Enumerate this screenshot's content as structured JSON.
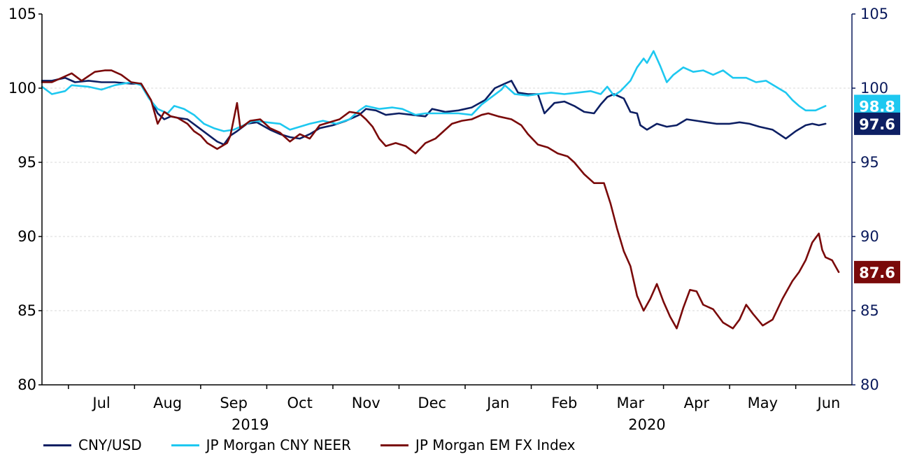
{
  "chart_data": {
    "type": "line",
    "title": "",
    "xlabel": "",
    "ylabel": "",
    "ylim": [
      80,
      105
    ],
    "y_ticks": [
      80,
      85,
      90,
      95,
      100,
      105
    ],
    "y2lim": [
      80,
      105
    ],
    "y2_ticks": [
      80,
      85,
      90,
      95,
      100,
      105
    ],
    "grid": "horizontal dashed",
    "legend_position": "bottom",
    "x_month_labels": [
      "Jul",
      "Aug",
      "Sep",
      "Oct",
      "Nov",
      "Dec",
      "Jan",
      "Feb",
      "Mar",
      "Apr",
      "May",
      "Jun"
    ],
    "x_year_labels": [
      {
        "label": "2019",
        "month_index": 2.25
      },
      {
        "label": "2020",
        "month_index": 8.25
      }
    ],
    "x_start_month_index": -0.9,
    "x_end_month_index": 10.95,
    "end_labels": [
      {
        "series": 1,
        "text": "98.8",
        "value": 98.8
      },
      {
        "series": 0,
        "text": "97.6",
        "value": 97.6
      },
      {
        "series": 2,
        "text": "87.6",
        "value": 87.6
      }
    ],
    "series": [
      {
        "name": "CNY/USD",
        "color": "#0d1f63",
        "points": [
          [
            -0.9,
            100.5
          ],
          [
            -0.75,
            100.5
          ],
          [
            -0.55,
            100.7
          ],
          [
            -0.4,
            100.4
          ],
          [
            -0.2,
            100.5
          ],
          [
            0,
            100.4
          ],
          [
            0.2,
            100.4
          ],
          [
            0.45,
            100.3
          ],
          [
            0.6,
            100.3
          ],
          [
            0.72,
            99.4
          ],
          [
            0.85,
            98.3
          ],
          [
            0.95,
            97.9
          ],
          [
            1.05,
            98.1
          ],
          [
            1.15,
            98.0
          ],
          [
            1.3,
            97.9
          ],
          [
            1.45,
            97.4
          ],
          [
            1.6,
            96.9
          ],
          [
            1.75,
            96.4
          ],
          [
            1.85,
            96.2
          ],
          [
            1.95,
            96.8
          ],
          [
            2.05,
            97.1
          ],
          [
            2.2,
            97.6
          ],
          [
            2.35,
            97.7
          ],
          [
            2.55,
            97.2
          ],
          [
            2.7,
            96.9
          ],
          [
            2.85,
            96.7
          ],
          [
            3.0,
            96.6
          ],
          [
            3.15,
            96.9
          ],
          [
            3.3,
            97.3
          ],
          [
            3.5,
            97.5
          ],
          [
            3.7,
            97.8
          ],
          [
            3.9,
            98.2
          ],
          [
            4.0,
            98.6
          ],
          [
            4.15,
            98.5
          ],
          [
            4.3,
            98.2
          ],
          [
            4.5,
            98.3
          ],
          [
            4.7,
            98.2
          ],
          [
            4.9,
            98.1
          ],
          [
            5.0,
            98.6
          ],
          [
            5.2,
            98.4
          ],
          [
            5.4,
            98.5
          ],
          [
            5.6,
            98.7
          ],
          [
            5.8,
            99.2
          ],
          [
            5.95,
            100.0
          ],
          [
            6.1,
            100.3
          ],
          [
            6.2,
            100.5
          ],
          [
            6.3,
            99.7
          ],
          [
            6.45,
            99.6
          ],
          [
            6.6,
            99.6
          ],
          [
            6.7,
            98.3
          ],
          [
            6.85,
            99.0
          ],
          [
            7.0,
            99.1
          ],
          [
            7.15,
            98.8
          ],
          [
            7.3,
            98.4
          ],
          [
            7.45,
            98.3
          ],
          [
            7.55,
            98.9
          ],
          [
            7.65,
            99.4
          ],
          [
            7.75,
            99.6
          ],
          [
            7.9,
            99.3
          ],
          [
            8.0,
            98.4
          ],
          [
            8.1,
            98.3
          ],
          [
            8.15,
            97.5
          ],
          [
            8.25,
            97.2
          ],
          [
            8.4,
            97.6
          ],
          [
            8.55,
            97.4
          ],
          [
            8.7,
            97.5
          ],
          [
            8.85,
            97.9
          ],
          [
            9.0,
            97.8
          ],
          [
            9.15,
            97.7
          ],
          [
            9.3,
            97.6
          ],
          [
            9.5,
            97.6
          ],
          [
            9.65,
            97.7
          ],
          [
            9.8,
            97.6
          ],
          [
            9.95,
            97.4
          ],
          [
            10.15,
            97.2
          ],
          [
            10.25,
            96.9
          ],
          [
            10.35,
            96.6
          ],
          [
            10.5,
            97.1
          ],
          [
            10.65,
            97.5
          ],
          [
            10.75,
            97.6
          ],
          [
            10.85,
            97.5
          ],
          [
            10.95,
            97.6
          ]
        ]
      },
      {
        "name": "JP Morgan CNY NEER",
        "color": "#1ec8f0",
        "points": [
          [
            -0.9,
            100.1
          ],
          [
            -0.75,
            99.6
          ],
          [
            -0.55,
            99.8
          ],
          [
            -0.45,
            100.2
          ],
          [
            -0.2,
            100.1
          ],
          [
            0,
            99.9
          ],
          [
            0.2,
            100.2
          ],
          [
            0.45,
            100.4
          ],
          [
            0.6,
            100.2
          ],
          [
            0.72,
            99.3
          ],
          [
            0.85,
            98.6
          ],
          [
            1.0,
            98.3
          ],
          [
            1.1,
            98.8
          ],
          [
            1.25,
            98.6
          ],
          [
            1.4,
            98.2
          ],
          [
            1.55,
            97.6
          ],
          [
            1.7,
            97.3
          ],
          [
            1.85,
            97.1
          ],
          [
            2.0,
            97.2
          ],
          [
            2.15,
            97.5
          ],
          [
            2.3,
            97.8
          ],
          [
            2.5,
            97.7
          ],
          [
            2.7,
            97.6
          ],
          [
            2.85,
            97.2
          ],
          [
            3.0,
            97.4
          ],
          [
            3.15,
            97.6
          ],
          [
            3.35,
            97.8
          ],
          [
            3.55,
            97.6
          ],
          [
            3.75,
            97.9
          ],
          [
            3.9,
            98.5
          ],
          [
            4.0,
            98.8
          ],
          [
            4.2,
            98.6
          ],
          [
            4.4,
            98.7
          ],
          [
            4.55,
            98.6
          ],
          [
            4.75,
            98.2
          ],
          [
            4.9,
            98.3
          ],
          [
            5.05,
            98.3
          ],
          [
            5.2,
            98.3
          ],
          [
            5.4,
            98.3
          ],
          [
            5.6,
            98.2
          ],
          [
            5.75,
            98.9
          ],
          [
            5.9,
            99.4
          ],
          [
            6.05,
            99.9
          ],
          [
            6.1,
            100.2
          ],
          [
            6.25,
            99.6
          ],
          [
            6.45,
            99.5
          ],
          [
            6.6,
            99.6
          ],
          [
            6.8,
            99.7
          ],
          [
            7.0,
            99.6
          ],
          [
            7.2,
            99.7
          ],
          [
            7.4,
            99.8
          ],
          [
            7.55,
            99.6
          ],
          [
            7.65,
            100.1
          ],
          [
            7.75,
            99.5
          ],
          [
            7.85,
            99.8
          ],
          [
            8.0,
            100.5
          ],
          [
            8.1,
            101.4
          ],
          [
            8.2,
            102.0
          ],
          [
            8.25,
            101.7
          ],
          [
            8.35,
            102.5
          ],
          [
            8.45,
            101.5
          ],
          [
            8.55,
            100.4
          ],
          [
            8.65,
            100.9
          ],
          [
            8.8,
            101.4
          ],
          [
            8.95,
            101.1
          ],
          [
            9.1,
            101.2
          ],
          [
            9.25,
            100.9
          ],
          [
            9.4,
            101.2
          ],
          [
            9.55,
            100.7
          ],
          [
            9.75,
            100.7
          ],
          [
            9.9,
            100.4
          ],
          [
            10.05,
            100.5
          ],
          [
            10.2,
            100.1
          ],
          [
            10.35,
            99.7
          ],
          [
            10.45,
            99.2
          ],
          [
            10.55,
            98.8
          ],
          [
            10.65,
            98.5
          ],
          [
            10.8,
            98.5
          ],
          [
            10.95,
            98.8
          ]
        ]
      },
      {
        "name": "JP Morgan EM FX Index",
        "color": "#7a0a0a",
        "points": [
          [
            -0.9,
            100.4
          ],
          [
            -0.75,
            100.4
          ],
          [
            -0.55,
            100.8
          ],
          [
            -0.45,
            101.0
          ],
          [
            -0.3,
            100.5
          ],
          [
            -0.2,
            100.8
          ],
          [
            -0.1,
            101.1
          ],
          [
            0.05,
            101.2
          ],
          [
            0.15,
            101.2
          ],
          [
            0.3,
            100.9
          ],
          [
            0.45,
            100.4
          ],
          [
            0.6,
            100.3
          ],
          [
            0.75,
            99.2
          ],
          [
            0.85,
            97.6
          ],
          [
            0.95,
            98.4
          ],
          [
            1.05,
            98.1
          ],
          [
            1.15,
            98.0
          ],
          [
            1.3,
            97.6
          ],
          [
            1.4,
            97.1
          ],
          [
            1.5,
            96.8
          ],
          [
            1.6,
            96.3
          ],
          [
            1.75,
            95.9
          ],
          [
            1.9,
            96.3
          ],
          [
            1.95,
            96.8
          ],
          [
            2.05,
            99.0
          ],
          [
            2.1,
            97.3
          ],
          [
            2.25,
            97.8
          ],
          [
            2.4,
            97.9
          ],
          [
            2.55,
            97.3
          ],
          [
            2.7,
            97.0
          ],
          [
            2.85,
            96.4
          ],
          [
            3.0,
            96.9
          ],
          [
            3.15,
            96.6
          ],
          [
            3.3,
            97.5
          ],
          [
            3.45,
            97.7
          ],
          [
            3.6,
            97.9
          ],
          [
            3.75,
            98.4
          ],
          [
            3.9,
            98.3
          ],
          [
            4.0,
            97.9
          ],
          [
            4.1,
            97.4
          ],
          [
            4.2,
            96.6
          ],
          [
            4.3,
            96.1
          ],
          [
            4.45,
            96.3
          ],
          [
            4.6,
            96.1
          ],
          [
            4.75,
            95.6
          ],
          [
            4.9,
            96.3
          ],
          [
            5.05,
            96.6
          ],
          [
            5.2,
            97.2
          ],
          [
            5.3,
            97.6
          ],
          [
            5.45,
            97.8
          ],
          [
            5.6,
            97.9
          ],
          [
            5.75,
            98.2
          ],
          [
            5.85,
            98.3
          ],
          [
            6.0,
            98.1
          ],
          [
            6.2,
            97.9
          ],
          [
            6.35,
            97.5
          ],
          [
            6.45,
            96.9
          ],
          [
            6.6,
            96.2
          ],
          [
            6.75,
            96.0
          ],
          [
            6.9,
            95.6
          ],
          [
            7.05,
            95.4
          ],
          [
            7.15,
            95.0
          ],
          [
            7.3,
            94.2
          ],
          [
            7.45,
            93.6
          ],
          [
            7.6,
            93.6
          ],
          [
            7.7,
            92.2
          ],
          [
            7.8,
            90.5
          ],
          [
            7.9,
            89.0
          ],
          [
            8.0,
            88.0
          ],
          [
            8.1,
            86.0
          ],
          [
            8.2,
            85.0
          ],
          [
            8.3,
            85.8
          ],
          [
            8.4,
            86.8
          ],
          [
            8.5,
            85.6
          ],
          [
            8.6,
            84.6
          ],
          [
            8.7,
            83.8
          ],
          [
            8.8,
            85.2
          ],
          [
            8.9,
            86.4
          ],
          [
            9.0,
            86.3
          ],
          [
            9.1,
            85.4
          ],
          [
            9.25,
            85.1
          ],
          [
            9.4,
            84.2
          ],
          [
            9.55,
            83.8
          ],
          [
            9.65,
            84.4
          ],
          [
            9.75,
            85.4
          ],
          [
            9.85,
            84.8
          ],
          [
            10.0,
            84.0
          ],
          [
            10.15,
            84.4
          ],
          [
            10.3,
            85.8
          ],
          [
            10.45,
            87.0
          ],
          [
            10.55,
            87.6
          ],
          [
            10.65,
            88.4
          ],
          [
            10.75,
            89.6
          ],
          [
            10.85,
            90.2
          ],
          [
            10.9,
            89.1
          ],
          [
            10.95,
            88.6
          ],
          [
            11.05,
            88.4
          ],
          [
            11.15,
            87.6
          ]
        ]
      }
    ]
  }
}
